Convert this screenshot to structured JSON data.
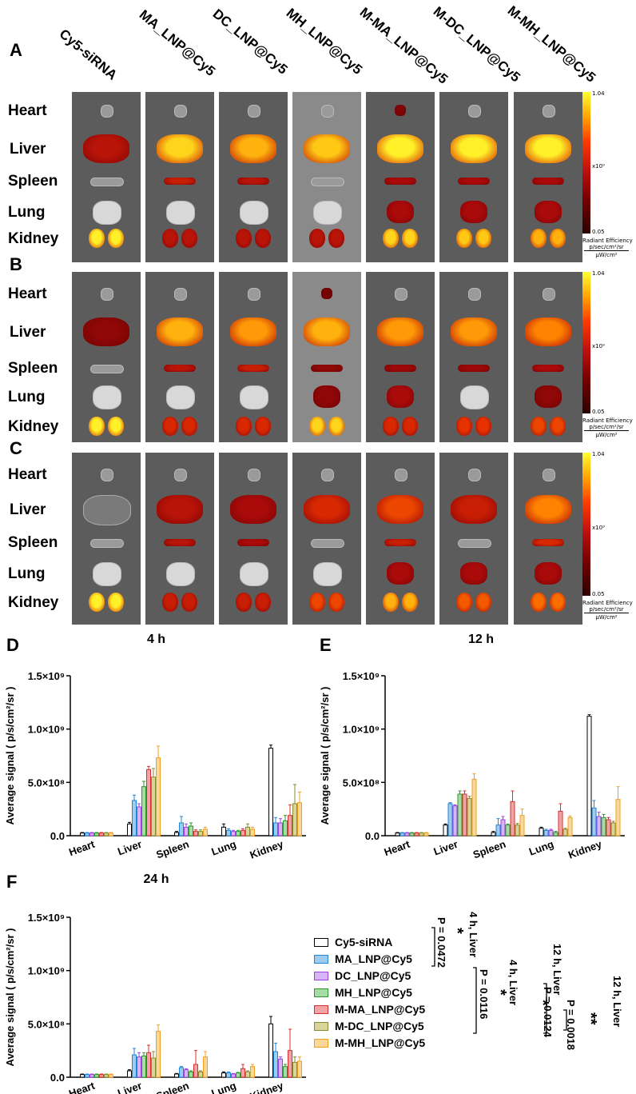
{
  "imaging": {
    "panels": [
      "A",
      "B",
      "C"
    ],
    "groups": [
      "Cy5-siRNA",
      "MA_LNP@Cy5",
      "DC_LNP@Cy5",
      "MH_LNP@Cy5",
      "M-MA_LNP@Cy5",
      "M-DC_LNP@Cy5",
      "M-MH_LNP@Cy5"
    ],
    "organs": [
      "Heart",
      "Liver",
      "Spleen",
      "Lung",
      "Kidney"
    ],
    "colorbar": {
      "max": "1.04",
      "min": "0.05",
      "scale": "x10⁹",
      "title": "Radiant Efficiency",
      "numerator": "p/sec/cm²/sr",
      "denominator": "μW/cm²"
    }
  },
  "colors": {
    "Cy5-siRNA": "#ffffff",
    "MA_LNP@Cy5": "#9ecbf0",
    "DC_LNP@Cy5": "#d6b4f5",
    "MH_LNP@Cy5": "#a6dca6",
    "M-MA_LNP@Cy5": "#f4a3a3",
    "M-DC_LNP@Cy5": "#d9d49a",
    "M-MH_LNP@Cy5": "#fbd79a",
    "edges": [
      "#000000",
      "#1f86d8",
      "#a040e0",
      "#2a9a2a",
      "#d83030",
      "#8a8a30",
      "#f0a020"
    ]
  },
  "chart_data": [
    {
      "panel": "D",
      "type": "bar",
      "title": "4 h",
      "categories": [
        "Heart",
        "Liver",
        "Spleen",
        "Lung",
        "Kidney"
      ],
      "ylabel": "Average signal ( p/s/cm²/sr )",
      "yticks": [
        "0.0",
        "5.0×10⁸",
        "1.0×10⁹",
        "1.5×10⁹"
      ],
      "ylim": [
        0,
        1500000000.0
      ],
      "series": [
        {
          "name": "Cy5-siRNA",
          "values": [
            25000000.0,
            110000000.0,
            30000000.0,
            80000000.0,
            820000000.0
          ],
          "errors": [
            5000000.0,
            15000000.0,
            10000000.0,
            30000000.0,
            30000000.0
          ]
        },
        {
          "name": "MA_LNP@Cy5",
          "values": [
            25000000.0,
            330000000.0,
            120000000.0,
            50000000.0,
            120000000.0
          ],
          "errors": [
            5000000.0,
            50000000.0,
            60000000.0,
            15000000.0,
            50000000.0
          ]
        },
        {
          "name": "DC_LNP@Cy5",
          "values": [
            25000000.0,
            270000000.0,
            80000000.0,
            40000000.0,
            120000000.0
          ],
          "errors": [
            5000000.0,
            30000000.0,
            30000000.0,
            10000000.0,
            40000000.0
          ]
        },
        {
          "name": "MH_LNP@Cy5",
          "values": [
            25000000.0,
            460000000.0,
            90000000.0,
            40000000.0,
            140000000.0
          ],
          "errors": [
            5000000.0,
            50000000.0,
            30000000.0,
            10000000.0,
            50000000.0
          ]
        },
        {
          "name": "M-MA_LNP@Cy5",
          "values": [
            25000000.0,
            620000000.0,
            40000000.0,
            50000000.0,
            190000000.0
          ],
          "errors": [
            5000000.0,
            30000000.0,
            15000000.0,
            15000000.0,
            100000000.0
          ]
        },
        {
          "name": "M-DC_LNP@Cy5",
          "values": [
            25000000.0,
            550000000.0,
            40000000.0,
            80000000.0,
            300000000.0
          ],
          "errors": [
            5000000.0,
            80000000.0,
            15000000.0,
            30000000.0,
            180000000.0
          ]
        },
        {
          "name": "M-MH_LNP@Cy5",
          "values": [
            25000000.0,
            730000000.0,
            60000000.0,
            60000000.0,
            310000000.0
          ],
          "errors": [
            5000000.0,
            110000000.0,
            20000000.0,
            20000000.0,
            100000000.0
          ]
        }
      ]
    },
    {
      "panel": "E",
      "type": "bar",
      "title": "12 h",
      "categories": [
        "Heart",
        "Liver",
        "Spleen",
        "Lung",
        "Kidney"
      ],
      "ylabel": "Average signal ( p/s/cm²/sr )",
      "yticks": [
        "0.0",
        "5.0×10⁸",
        "1.0×10⁹",
        "1.5×10⁹"
      ],
      "ylim": [
        0,
        1500000000.0
      ],
      "series": [
        {
          "name": "Cy5-siRNA",
          "values": [
            25000000.0,
            100000000.0,
            30000000.0,
            70000000.0,
            1120000000.0
          ],
          "errors": [
            5000000.0,
            10000000.0,
            10000000.0,
            10000000.0,
            15000000.0
          ]
        },
        {
          "name": "MA_LNP@Cy5",
          "values": [
            25000000.0,
            300000000.0,
            100000000.0,
            50000000.0,
            260000000.0
          ],
          "errors": [
            5000000.0,
            10000000.0,
            60000000.0,
            10000000.0,
            70000000.0
          ]
        },
        {
          "name": "DC_LNP@Cy5",
          "values": [
            25000000.0,
            280000000.0,
            150000000.0,
            50000000.0,
            180000000.0
          ],
          "errors": [
            5000000.0,
            10000000.0,
            30000000.0,
            10000000.0,
            40000000.0
          ]
        },
        {
          "name": "MH_LNP@Cy5",
          "values": [
            25000000.0,
            390000000.0,
            100000000.0,
            30000000.0,
            170000000.0
          ],
          "errors": [
            5000000.0,
            30000000.0,
            10000000.0,
            10000000.0,
            30000000.0
          ]
        },
        {
          "name": "M-MA_LNP@Cy5",
          "values": [
            25000000.0,
            390000000.0,
            320000000.0,
            230000000.0,
            150000000.0
          ],
          "errors": [
            5000000.0,
            30000000.0,
            100000000.0,
            70000000.0,
            20000000.0
          ]
        },
        {
          "name": "M-DC_LNP@Cy5",
          "values": [
            25000000.0,
            350000000.0,
            100000000.0,
            60000000.0,
            120000000.0
          ],
          "errors": [
            5000000.0,
            20000000.0,
            15000000.0,
            10000000.0,
            15000000.0
          ]
        },
        {
          "name": "M-MH_LNP@Cy5",
          "values": [
            25000000.0,
            530000000.0,
            190000000.0,
            170000000.0,
            340000000.0
          ],
          "errors": [
            5000000.0,
            50000000.0,
            60000000.0,
            15000000.0,
            120000000.0
          ]
        }
      ]
    },
    {
      "panel": "F",
      "type": "bar",
      "title": "24 h",
      "categories": [
        "Heart",
        "Liver",
        "Spleen",
        "Lung",
        "Kidney"
      ],
      "ylabel": "Average signal ( p/s/cm²/sr )",
      "yticks": [
        "0.0",
        "5.0×10⁸",
        "1.0×10⁹",
        "1.5×10⁹"
      ],
      "ylim": [
        0,
        1500000000.0
      ],
      "series": [
        {
          "name": "Cy5-siRNA",
          "values": [
            25000000.0,
            60000000.0,
            30000000.0,
            40000000.0,
            500000000.0
          ],
          "errors": [
            5000000.0,
            10000000.0,
            5000000.0,
            10000000.0,
            70000000.0
          ]
        },
        {
          "name": "MA_LNP@Cy5",
          "values": [
            25000000.0,
            210000000.0,
            90000000.0,
            40000000.0,
            240000000.0
          ],
          "errors": [
            5000000.0,
            60000000.0,
            10000000.0,
            10000000.0,
            80000000.0
          ]
        },
        {
          "name": "DC_LNP@Cy5",
          "values": [
            25000000.0,
            190000000.0,
            70000000.0,
            30000000.0,
            170000000.0
          ],
          "errors": [
            5000000.0,
            40000000.0,
            10000000.0,
            5000000.0,
            20000000.0
          ]
        },
        {
          "name": "MH_LNP@Cy5",
          "values": [
            25000000.0,
            200000000.0,
            50000000.0,
            40000000.0,
            100000000.0
          ],
          "errors": [
            5000000.0,
            30000000.0,
            10000000.0,
            5000000.0,
            20000000.0
          ]
        },
        {
          "name": "M-MA_LNP@Cy5",
          "values": [
            25000000.0,
            230000000.0,
            120000000.0,
            80000000.0,
            250000000.0
          ],
          "errors": [
            5000000.0,
            70000000.0,
            130000000.0,
            40000000.0,
            200000000.0
          ]
        },
        {
          "name": "M-DC_LNP@Cy5",
          "values": [
            25000000.0,
            180000000.0,
            50000000.0,
            50000000.0,
            140000000.0
          ],
          "errors": [
            5000000.0,
            60000000.0,
            10000000.0,
            10000000.0,
            50000000.0
          ]
        },
        {
          "name": "M-MH_LNP@Cy5",
          "values": [
            25000000.0,
            430000000.0,
            190000000.0,
            100000000.0,
            150000000.0
          ],
          "errors": [
            5000000.0,
            60000000.0,
            50000000.0,
            20000000.0,
            40000000.0
          ]
        }
      ]
    }
  ],
  "legend": {
    "items": [
      "Cy5-siRNA",
      "MA_LNP@Cy5",
      "DC_LNP@Cy5",
      "MH_LNP@Cy5",
      "M-MA_LNP@Cy5",
      "M-DC_LNP@Cy5",
      "M-MH_LNP@Cy5"
    ]
  },
  "stats": [
    {
      "p": "P = 0.0472",
      "star": "*",
      "label": "4 h, Liver"
    },
    {
      "p": "P = 0.0116",
      "star": "*",
      "label": "4 h, Liver"
    },
    {
      "p": "P = 0.0124",
      "star": "*",
      "label": "12 h, Liver"
    },
    {
      "p": "P = 0.0018",
      "star": "**",
      "label": "12 h, Liver"
    }
  ]
}
